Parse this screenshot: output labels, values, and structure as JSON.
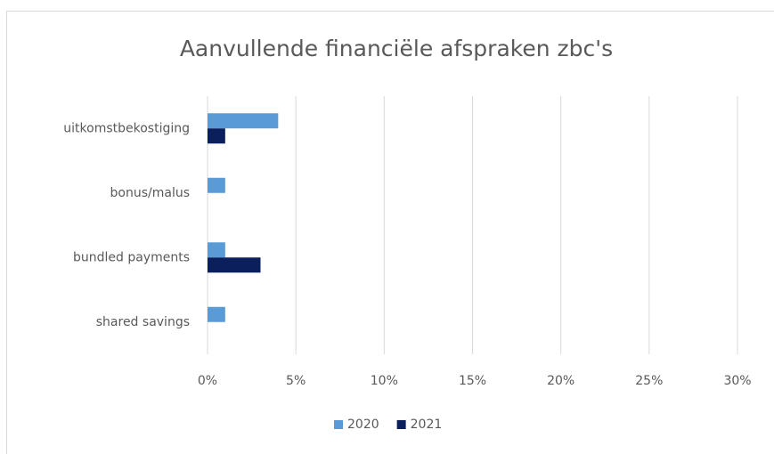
{
  "chart_data": {
    "type": "hbar",
    "title": "Aanvullende financiële afspraken zbc's",
    "categories": [
      "uitkomstbekostiging",
      "bonus/malus",
      "bundled payments",
      "shared savings"
    ],
    "series": [
      {
        "name": "2020",
        "color": "#5b9bd5",
        "values": [
          4,
          1,
          1,
          1
        ]
      },
      {
        "name": "2021",
        "color": "#0b1f5c",
        "values": [
          1,
          0,
          3,
          0
        ]
      }
    ],
    "xlim": [
      0,
      30
    ],
    "xticks": [
      {
        "value": 0,
        "label": "0%"
      },
      {
        "value": 5,
        "label": "5%"
      },
      {
        "value": 10,
        "label": "10%"
      },
      {
        "value": 15,
        "label": "15%"
      },
      {
        "value": 20,
        "label": "20%"
      },
      {
        "value": 25,
        "label": "25%"
      },
      {
        "value": 30,
        "label": "30%"
      }
    ],
    "grid": true,
    "legend": "bottom"
  }
}
